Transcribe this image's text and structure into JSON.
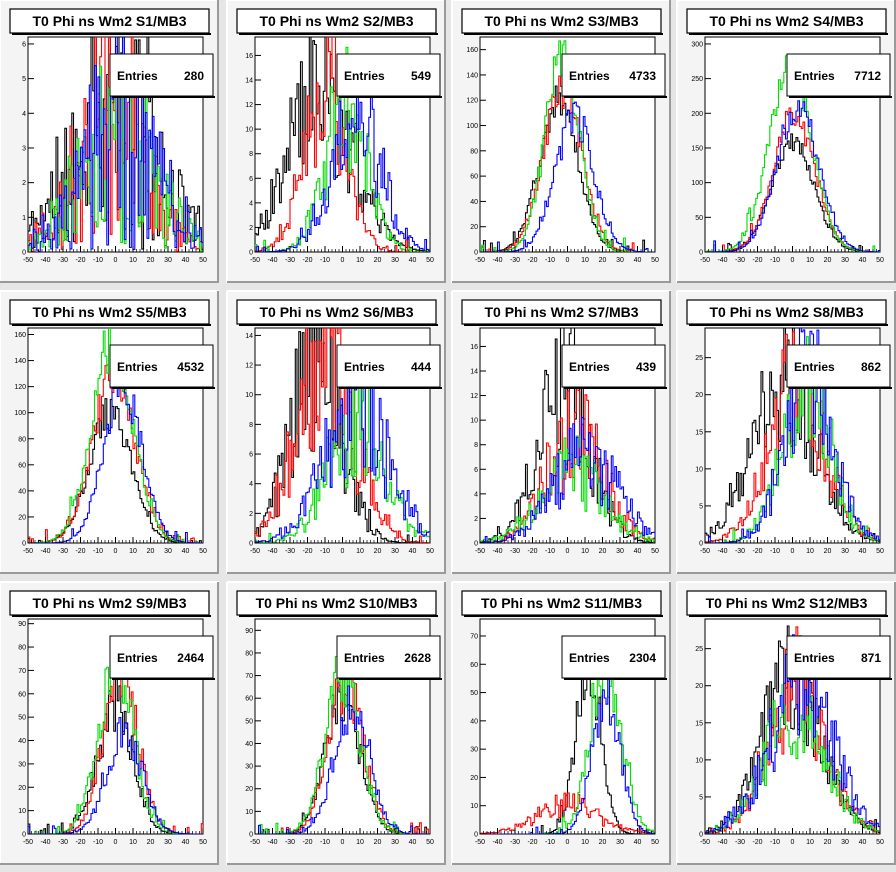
{
  "panels": [
    {
      "title": "T0 Phi ns Wm2 S1/MB3",
      "entries_label": "Entries",
      "entries": "280"
    },
    {
      "title": "T0 Phi ns Wm2 S2/MB3",
      "entries_label": "Entries",
      "entries": "549"
    },
    {
      "title": "T0 Phi ns Wm2 S3/MB3",
      "entries_label": "Entries",
      "entries": "4733"
    },
    {
      "title": "T0 Phi ns Wm2 S4/MB3",
      "entries_label": "Entries",
      "entries": "7712"
    },
    {
      "title": "T0 Phi ns Wm2 S5/MB3",
      "entries_label": "Entries",
      "entries": "4532"
    },
    {
      "title": "T0 Phi ns Wm2 S6/MB3",
      "entries_label": "Entries",
      "entries": "444"
    },
    {
      "title": "T0 Phi ns Wm2 S7/MB3",
      "entries_label": "Entries",
      "entries": "439"
    },
    {
      "title": "T0 Phi ns Wm2 S8/MB3",
      "entries_label": "Entries",
      "entries": "862"
    },
    {
      "title": "T0 Phi ns Wm2 S9/MB3",
      "entries_label": "Entries",
      "entries": "2464"
    },
    {
      "title": "T0 Phi ns Wm2 S10/MB3",
      "entries_label": "Entries",
      "entries": "2628"
    },
    {
      "title": "T0 Phi ns Wm2 S11/MB3",
      "entries_label": "Entries",
      "entries": "2304"
    },
    {
      "title": "T0 Phi ns Wm2 S12/MB3",
      "entries_label": "Entries",
      "entries": "871"
    }
  ],
  "colors": {
    "black": "#000000",
    "red": "#ff0000",
    "green": "#00dd00",
    "blue": "#0000ff",
    "frame": "#f4f4f4",
    "page": "#e6e6e6"
  },
  "chart_data": [
    {
      "type": "histogram",
      "title": "T0 Phi ns Wm2 S1/MB3",
      "entries": 280,
      "xlim": [
        -50,
        50
      ],
      "ylim": [
        0,
        6.2
      ],
      "x_ticks": [
        -50,
        -40,
        -30,
        -20,
        -10,
        0,
        10,
        20,
        30,
        40,
        50
      ],
      "y_ticks": [
        0,
        1,
        2,
        3,
        4,
        5,
        6
      ],
      "series": [
        {
          "color": "black",
          "mean": 0,
          "sigma": 25,
          "peak": 4.2,
          "noise": 0.85,
          "seed": 11,
          "range": [
            -50,
            50
          ]
        },
        {
          "color": "red",
          "mean": -2,
          "sigma": 20,
          "peak": 4,
          "noise": 0.85,
          "seed": 12,
          "range": [
            -50,
            50
          ]
        },
        {
          "color": "green",
          "mean": 0,
          "sigma": 22,
          "peak": 3.2,
          "noise": 0.85,
          "seed": 13,
          "range": [
            -50,
            50
          ]
        },
        {
          "color": "blue",
          "mean": 2,
          "sigma": 22,
          "peak": 3.4,
          "noise": 0.85,
          "seed": 14,
          "range": [
            -50,
            50
          ]
        }
      ]
    },
    {
      "type": "histogram",
      "title": "T0 Phi ns Wm2 S2/MB3",
      "entries": 549,
      "xlim": [
        -50,
        50
      ],
      "ylim": [
        0,
        17.5
      ],
      "x_ticks": [
        -50,
        -40,
        -30,
        -20,
        -10,
        0,
        10,
        20,
        30,
        40,
        50
      ],
      "y_ticks": [
        0,
        2,
        4,
        6,
        8,
        10,
        12,
        14,
        16
      ],
      "series": [
        {
          "color": "black",
          "mean": -12,
          "sigma": 18,
          "peak": 14,
          "noise": 0.45,
          "seed": 21,
          "range": [
            -50,
            50
          ]
        },
        {
          "color": "red",
          "mean": -10,
          "sigma": 12,
          "peak": 14,
          "noise": 0.4,
          "seed": 22,
          "range": [
            -50,
            50
          ]
        },
        {
          "color": "green",
          "mean": 2,
          "sigma": 12,
          "peak": 12,
          "noise": 0.4,
          "seed": 23,
          "range": [
            -50,
            50
          ]
        },
        {
          "color": "blue",
          "mean": 8,
          "sigma": 14,
          "peak": 11,
          "noise": 0.4,
          "seed": 24,
          "range": [
            -50,
            50
          ]
        }
      ]
    },
    {
      "type": "histogram",
      "title": "T0 Phi ns Wm2 S3/MB3",
      "entries": 4733,
      "xlim": [
        -50,
        50
      ],
      "ylim": [
        0,
        170
      ],
      "x_ticks": [
        -50,
        -40,
        -30,
        -20,
        -10,
        0,
        10,
        20,
        30,
        40,
        50
      ],
      "y_ticks": [
        0,
        20,
        40,
        60,
        80,
        100,
        120,
        140,
        160
      ],
      "series": [
        {
          "color": "black",
          "mean": -5,
          "sigma": 11,
          "peak": 120,
          "noise": 0.12,
          "seed": 31,
          "range": [
            -50,
            50
          ]
        },
        {
          "color": "red",
          "mean": -3,
          "sigma": 11,
          "peak": 130,
          "noise": 0.12,
          "seed": 32,
          "range": [
            -50,
            50
          ]
        },
        {
          "color": "green",
          "mean": -3,
          "sigma": 10,
          "peak": 150,
          "noise": 0.12,
          "seed": 33,
          "range": [
            -50,
            50
          ]
        },
        {
          "color": "blue",
          "mean": 4,
          "sigma": 11,
          "peak": 105,
          "noise": 0.12,
          "seed": 34,
          "range": [
            -50,
            50
          ]
        }
      ]
    },
    {
      "type": "histogram",
      "title": "T0 Phi ns Wm2 S4/MB3",
      "entries": 7712,
      "xlim": [
        -50,
        50
      ],
      "ylim": [
        0,
        310
      ],
      "x_ticks": [
        -50,
        -40,
        -30,
        -20,
        -10,
        0,
        10,
        20,
        30,
        40,
        50
      ],
      "y_ticks": [
        0,
        50,
        100,
        150,
        200,
        250,
        300
      ],
      "series": [
        {
          "color": "black",
          "mean": 0,
          "sigma": 12,
          "peak": 160,
          "noise": 0.08,
          "seed": 41,
          "range": [
            -50,
            50
          ]
        },
        {
          "color": "red",
          "mean": 1,
          "sigma": 12,
          "peak": 195,
          "noise": 0.08,
          "seed": 42,
          "range": [
            -50,
            50
          ]
        },
        {
          "color": "green",
          "mean": -1,
          "sigma": 12,
          "peak": 270,
          "noise": 0.08,
          "seed": 43,
          "range": [
            -50,
            50
          ]
        },
        {
          "color": "blue",
          "mean": 3,
          "sigma": 12,
          "peak": 205,
          "noise": 0.08,
          "seed": 44,
          "range": [
            -50,
            50
          ]
        }
      ]
    },
    {
      "type": "histogram",
      "title": "T0 Phi ns Wm2 S5/MB3",
      "entries": 4532,
      "xlim": [
        -50,
        50
      ],
      "ylim": [
        0,
        165
      ],
      "x_ticks": [
        -50,
        -40,
        -30,
        -20,
        -10,
        0,
        10,
        20,
        30,
        40,
        50
      ],
      "y_ticks": [
        0,
        20,
        40,
        60,
        80,
        100,
        120,
        140,
        160
      ],
      "series": [
        {
          "color": "black",
          "mean": -3,
          "sigma": 12,
          "peak": 100,
          "noise": 0.12,
          "seed": 51,
          "range": [
            -50,
            50
          ]
        },
        {
          "color": "red",
          "mean": -1,
          "sigma": 12,
          "peak": 130,
          "noise": 0.12,
          "seed": 52,
          "range": [
            -50,
            50
          ]
        },
        {
          "color": "green",
          "mean": -2,
          "sigma": 12,
          "peak": 150,
          "noise": 0.12,
          "seed": 53,
          "range": [
            -50,
            50
          ]
        },
        {
          "color": "blue",
          "mean": 4,
          "sigma": 11,
          "peak": 120,
          "noise": 0.12,
          "seed": 54,
          "range": [
            -50,
            50
          ]
        }
      ]
    },
    {
      "type": "histogram",
      "title": "T0 Phi ns Wm2 S6/MB3",
      "entries": 444,
      "xlim": [
        -50,
        50
      ],
      "ylim": [
        0,
        14.5
      ],
      "x_ticks": [
        -50,
        -40,
        -30,
        -20,
        -10,
        0,
        10,
        20,
        30,
        40,
        50
      ],
      "y_ticks": [
        0,
        2,
        4,
        6,
        8,
        10,
        12,
        14
      ],
      "series": [
        {
          "color": "black",
          "mean": -15,
          "sigma": 14,
          "peak": 13,
          "noise": 0.45,
          "seed": 61,
          "range": [
            -50,
            50
          ]
        },
        {
          "color": "red",
          "mean": -10,
          "sigma": 16,
          "peak": 13,
          "noise": 0.45,
          "seed": 62,
          "range": [
            -50,
            50
          ]
        },
        {
          "color": "green",
          "mean": 8,
          "sigma": 16,
          "peak": 8,
          "noise": 0.45,
          "seed": 63,
          "range": [
            -50,
            50
          ]
        },
        {
          "color": "blue",
          "mean": 8,
          "sigma": 18,
          "peak": 9,
          "noise": 0.45,
          "seed": 64,
          "range": [
            -50,
            50
          ]
        }
      ]
    },
    {
      "type": "histogram",
      "title": "T0 Phi ns Wm2 S7/MB3",
      "entries": 439,
      "xlim": [
        -50,
        50
      ],
      "ylim": [
        0,
        17.5
      ],
      "x_ticks": [
        -50,
        -40,
        -30,
        -20,
        -10,
        0,
        10,
        20,
        30,
        40,
        50
      ],
      "y_ticks": [
        0,
        2,
        4,
        6,
        8,
        10,
        12,
        14,
        16
      ],
      "series": [
        {
          "color": "black",
          "mean": -2,
          "sigma": 15,
          "peak": 13,
          "noise": 0.45,
          "seed": 71,
          "range": [
            -50,
            50
          ]
        },
        {
          "color": "red",
          "mean": 5,
          "sigma": 16,
          "peak": 9,
          "noise": 0.45,
          "seed": 72,
          "range": [
            -50,
            50
          ]
        },
        {
          "color": "green",
          "mean": 2,
          "sigma": 18,
          "peak": 6,
          "noise": 0.45,
          "seed": 73,
          "range": [
            -50,
            50
          ]
        },
        {
          "color": "blue",
          "mean": 10,
          "sigma": 18,
          "peak": 7,
          "noise": 0.45,
          "seed": 74,
          "range": [
            -50,
            50
          ]
        }
      ]
    },
    {
      "type": "histogram",
      "title": "T0 Phi ns Wm2 S8/MB3",
      "entries": 862,
      "xlim": [
        -50,
        50
      ],
      "ylim": [
        0,
        29
      ],
      "x_ticks": [
        -50,
        -40,
        -30,
        -20,
        -10,
        0,
        10,
        20,
        30,
        40,
        50
      ],
      "y_ticks": [
        0,
        5,
        10,
        15,
        20,
        25
      ],
      "series": [
        {
          "color": "black",
          "mean": -5,
          "sigma": 18,
          "peak": 22,
          "noise": 0.35,
          "seed": 81,
          "range": [
            -50,
            50
          ]
        },
        {
          "color": "red",
          "mean": 2,
          "sigma": 16,
          "peak": 22,
          "noise": 0.35,
          "seed": 82,
          "range": [
            -50,
            50
          ]
        },
        {
          "color": "green",
          "mean": 8,
          "sigma": 14,
          "peak": 20,
          "noise": 0.35,
          "seed": 83,
          "range": [
            -50,
            50
          ]
        },
        {
          "color": "blue",
          "mean": 10,
          "sigma": 14,
          "peak": 22,
          "noise": 0.35,
          "seed": 84,
          "range": [
            -50,
            50
          ]
        }
      ]
    },
    {
      "type": "histogram",
      "title": "T0 Phi ns Wm2 S9/MB3",
      "entries": 2464,
      "xlim": [
        -50,
        50
      ],
      "ylim": [
        0,
        92
      ],
      "x_ticks": [
        -50,
        -40,
        -30,
        -20,
        -10,
        0,
        10,
        20,
        30,
        40,
        50
      ],
      "y_ticks": [
        0,
        10,
        20,
        30,
        40,
        50,
        60,
        70,
        80,
        90
      ],
      "series": [
        {
          "color": "black",
          "mean": 0,
          "sigma": 10,
          "peak": 55,
          "noise": 0.18,
          "seed": 91,
          "range": [
            -50,
            50
          ]
        },
        {
          "color": "red",
          "mean": 3,
          "sigma": 10,
          "peak": 68,
          "noise": 0.18,
          "seed": 92,
          "range": [
            -50,
            50
          ]
        },
        {
          "color": "green",
          "mean": 0,
          "sigma": 10,
          "peak": 72,
          "noise": 0.18,
          "seed": 93,
          "range": [
            -50,
            50
          ]
        },
        {
          "color": "blue",
          "mean": 5,
          "sigma": 10,
          "peak": 45,
          "noise": 0.18,
          "seed": 94,
          "range": [
            -50,
            50
          ]
        }
      ]
    },
    {
      "type": "histogram",
      "title": "T0 Phi ns Wm2 S10/MB3",
      "entries": 2628,
      "xlim": [
        -50,
        50
      ],
      "ylim": [
        0,
        95
      ],
      "x_ticks": [
        -50,
        -40,
        -30,
        -20,
        -10,
        0,
        10,
        20,
        30,
        40,
        50
      ],
      "y_ticks": [
        0,
        10,
        20,
        30,
        40,
        50,
        60,
        70,
        80,
        90
      ],
      "series": [
        {
          "color": "black",
          "mean": 0,
          "sigma": 10,
          "peak": 60,
          "noise": 0.18,
          "seed": 101,
          "range": [
            -50,
            50
          ]
        },
        {
          "color": "red",
          "mean": 2,
          "sigma": 10,
          "peak": 65,
          "noise": 0.18,
          "seed": 102,
          "range": [
            -50,
            50
          ]
        },
        {
          "color": "green",
          "mean": 0,
          "sigma": 10,
          "peak": 70,
          "noise": 0.18,
          "seed": 103,
          "range": [
            -50,
            50
          ]
        },
        {
          "color": "blue",
          "mean": 5,
          "sigma": 10,
          "peak": 55,
          "noise": 0.18,
          "seed": 104,
          "range": [
            -50,
            50
          ]
        }
      ]
    },
    {
      "type": "histogram",
      "title": "T0 Phi ns Wm2 S11/MB3",
      "entries": 2304,
      "xlim": [
        -50,
        50
      ],
      "ylim": [
        0,
        76
      ],
      "x_ticks": [
        -50,
        -40,
        -30,
        -20,
        -10,
        0,
        10,
        20,
        30,
        40,
        50
      ],
      "y_ticks": [
        0,
        10,
        20,
        30,
        40,
        50,
        60,
        70
      ],
      "series": [
        {
          "color": "black",
          "mean": 12,
          "sigma": 7,
          "peak": 62,
          "noise": 0.18,
          "seed": 111,
          "range": [
            -25,
            50
          ]
        },
        {
          "color": "red",
          "mean": 0,
          "sigma": 18,
          "peak": 10,
          "noise": 0.45,
          "seed": 112,
          "range": [
            -50,
            50
          ]
        },
        {
          "color": "green",
          "mean": 22,
          "sigma": 9,
          "peak": 58,
          "noise": 0.18,
          "seed": 113,
          "range": [
            -30,
            50
          ]
        },
        {
          "color": "blue",
          "mean": 22,
          "sigma": 8,
          "peak": 50,
          "noise": 0.18,
          "seed": 114,
          "range": [
            -30,
            50
          ]
        }
      ]
    },
    {
      "type": "histogram",
      "title": "T0 Phi ns Wm2 S12/MB3",
      "entries": 871,
      "xlim": [
        -50,
        50
      ],
      "ylim": [
        0,
        29
      ],
      "x_ticks": [
        -50,
        -40,
        -30,
        -20,
        -10,
        0,
        10,
        20,
        30,
        40,
        50
      ],
      "y_ticks": [
        0,
        5,
        10,
        15,
        20,
        25
      ],
      "series": [
        {
          "color": "black",
          "mean": 0,
          "sigma": 17,
          "peak": 21,
          "noise": 0.35,
          "seed": 121,
          "range": [
            -50,
            50
          ]
        },
        {
          "color": "red",
          "mean": 3,
          "sigma": 16,
          "peak": 20,
          "noise": 0.35,
          "seed": 122,
          "range": [
            -50,
            50
          ]
        },
        {
          "color": "green",
          "mean": 2,
          "sigma": 17,
          "peak": 17,
          "noise": 0.35,
          "seed": 123,
          "range": [
            -50,
            50
          ]
        },
        {
          "color": "blue",
          "mean": 5,
          "sigma": 18,
          "peak": 20,
          "noise": 0.35,
          "seed": 124,
          "range": [
            -50,
            50
          ]
        }
      ]
    }
  ]
}
